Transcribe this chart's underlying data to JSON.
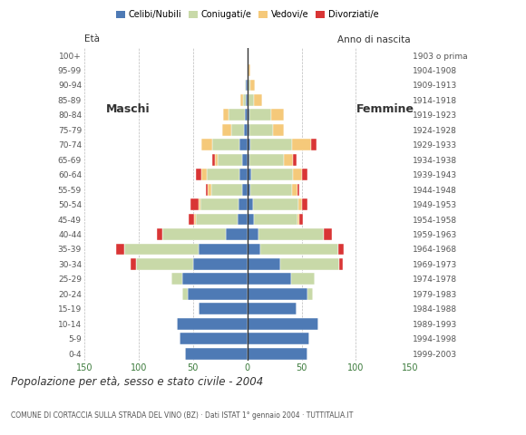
{
  "age_groups": [
    "0-4",
    "5-9",
    "10-14",
    "15-19",
    "20-24",
    "25-29",
    "30-34",
    "35-39",
    "40-44",
    "45-49",
    "50-54",
    "55-59",
    "60-64",
    "65-69",
    "70-74",
    "75-79",
    "80-84",
    "85-89",
    "90-94",
    "95-99",
    "100+"
  ],
  "birth_years": [
    "1999-2003",
    "1994-1998",
    "1989-1993",
    "1984-1988",
    "1979-1983",
    "1974-1978",
    "1969-1973",
    "1964-1968",
    "1959-1963",
    "1954-1958",
    "1949-1953",
    "1944-1948",
    "1939-1943",
    "1934-1938",
    "1929-1933",
    "1924-1928",
    "1919-1923",
    "1914-1918",
    "1909-1913",
    "1904-1908",
    "1903 o prima"
  ],
  "males": {
    "celibe": [
      57,
      62,
      65,
      45,
      55,
      60,
      50,
      45,
      20,
      9,
      8,
      5,
      7,
      5,
      7,
      3,
      2,
      1,
      1,
      0,
      0
    ],
    "coniugato": [
      0,
      0,
      0,
      0,
      5,
      10,
      52,
      68,
      58,
      38,
      35,
      28,
      30,
      22,
      25,
      12,
      15,
      3,
      1,
      0,
      0
    ],
    "vedovo": [
      0,
      0,
      0,
      0,
      0,
      0,
      0,
      0,
      0,
      2,
      2,
      3,
      5,
      3,
      10,
      8,
      5,
      2,
      0,
      0,
      0
    ],
    "divorziato": [
      0,
      0,
      0,
      0,
      0,
      0,
      5,
      8,
      5,
      5,
      7,
      2,
      5,
      2,
      0,
      0,
      0,
      0,
      0,
      0,
      0
    ]
  },
  "females": {
    "nubile": [
      55,
      57,
      65,
      45,
      55,
      40,
      30,
      12,
      10,
      6,
      5,
      3,
      4,
      2,
      3,
      2,
      2,
      1,
      1,
      1,
      0
    ],
    "coniugata": [
      0,
      0,
      0,
      0,
      5,
      22,
      55,
      72,
      60,
      40,
      42,
      38,
      38,
      32,
      38,
      22,
      20,
      5,
      2,
      0,
      0
    ],
    "vedova": [
      0,
      0,
      0,
      0,
      0,
      0,
      0,
      0,
      0,
      2,
      3,
      5,
      8,
      8,
      18,
      10,
      12,
      8,
      4,
      2,
      0
    ],
    "divorziata": [
      0,
      0,
      0,
      0,
      0,
      0,
      3,
      5,
      8,
      3,
      5,
      2,
      5,
      3,
      5,
      0,
      0,
      0,
      0,
      0,
      0
    ]
  },
  "colors": {
    "celibe": "#4e7ab5",
    "coniugato": "#c8d9a8",
    "vedovo": "#f5c97a",
    "divorziato": "#d93535"
  },
  "title": "Popolazione per età, sesso e stato civile - 2004",
  "subtitle": "COMUNE DI CORTACCIA SULLA STRADA DEL VINO (BZ) · Dati ISTAT 1° gennaio 2004 · TUTTITALIA.IT",
  "xlim": 150,
  "background_color": "#ffffff",
  "grid_color": "#aaaaaa"
}
